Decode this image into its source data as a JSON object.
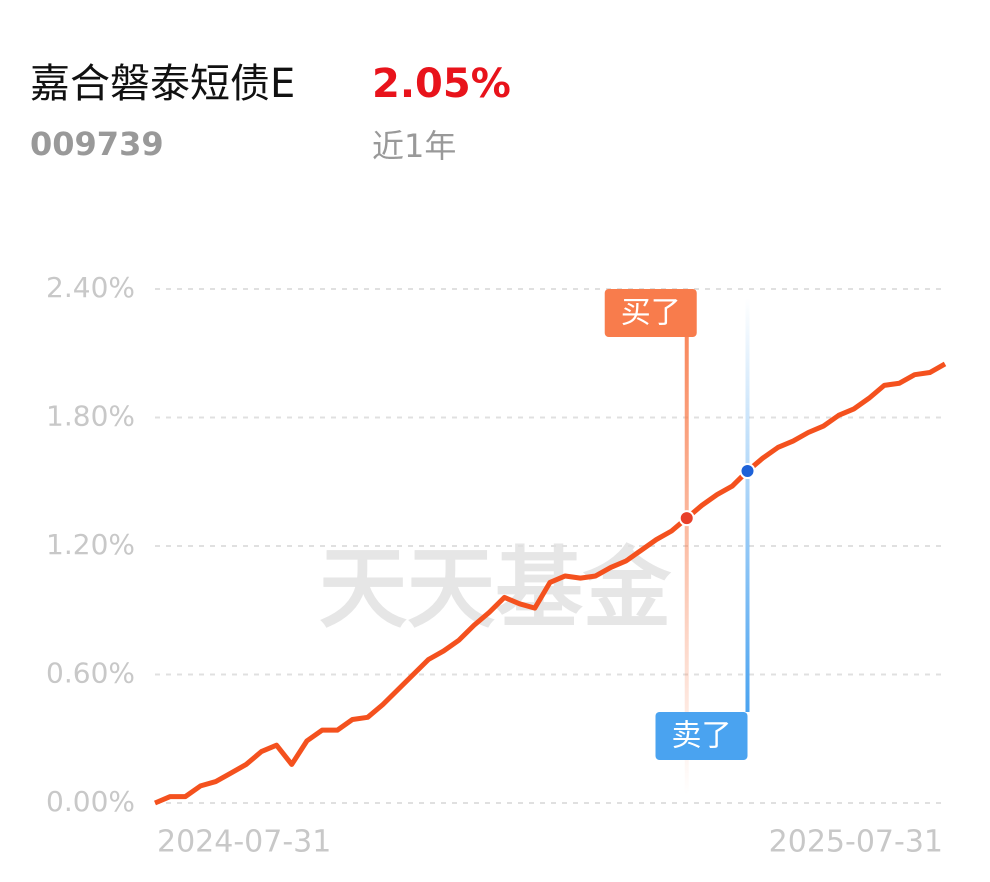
{
  "header": {
    "name": "嘉合磐泰短债E",
    "return_label": "2.05%",
    "code": "009739",
    "period": "近1年"
  },
  "chart_data": {
    "type": "line",
    "watermark": "天天基金",
    "color": "#f4511e",
    "categories": [
      "2024-07-31",
      null,
      null,
      null,
      null,
      null,
      null,
      null,
      null,
      null,
      null,
      null,
      null,
      null,
      null,
      null,
      null,
      null,
      null,
      null,
      null,
      null,
      null,
      null,
      null,
      null,
      null,
      null,
      null,
      null,
      null,
      null,
      null,
      null,
      null,
      null,
      null,
      null,
      null,
      null,
      null,
      null,
      null,
      null,
      null,
      null,
      null,
      null,
      null,
      null,
      null,
      null,
      "2025-07-31"
    ],
    "values": [
      0.0,
      0.03,
      0.03,
      0.08,
      0.1,
      0.14,
      0.18,
      0.24,
      0.27,
      0.18,
      0.29,
      0.34,
      0.34,
      0.39,
      0.4,
      0.46,
      0.53,
      0.6,
      0.67,
      0.71,
      0.76,
      0.83,
      0.89,
      0.96,
      0.93,
      0.91,
      1.03,
      1.06,
      1.05,
      1.06,
      1.1,
      1.13,
      1.18,
      1.23,
      1.27,
      1.33,
      1.39,
      1.44,
      1.48,
      1.55,
      1.61,
      1.66,
      1.69,
      1.73,
      1.76,
      1.81,
      1.84,
      1.89,
      1.95,
      1.96,
      2.0,
      2.01,
      2.05
    ],
    "markers": [
      {
        "name": "买了",
        "color": "#f87c4c",
        "dot": "#e8402a",
        "values": [
          null,
          null,
          null,
          null,
          null,
          null,
          null,
          null,
          null,
          null,
          null,
          null,
          null,
          null,
          null,
          null,
          null,
          null,
          null,
          null,
          null,
          null,
          null,
          null,
          null,
          null,
          null,
          null,
          null,
          null,
          null,
          null,
          null,
          null,
          null,
          1.33,
          null,
          null,
          null,
          null,
          null,
          null,
          null,
          null,
          null,
          null,
          null,
          null,
          null,
          null,
          null,
          null,
          null
        ]
      },
      {
        "name": "卖了",
        "color": "#4aa3f0",
        "dot": "#1e62d8",
        "values": [
          null,
          null,
          null,
          null,
          null,
          null,
          null,
          null,
          null,
          null,
          null,
          null,
          null,
          null,
          null,
          null,
          null,
          null,
          null,
          null,
          null,
          null,
          null,
          null,
          null,
          null,
          null,
          null,
          null,
          null,
          null,
          null,
          null,
          null,
          null,
          null,
          null,
          null,
          null,
          1.55,
          null,
          null,
          null,
          null,
          null,
          null,
          null,
          null,
          null,
          null,
          null,
          null,
          null
        ]
      }
    ],
    "ylim": [
      0,
      2.4
    ],
    "yticks": [
      {
        "value": 0,
        "label": "0.00%"
      },
      {
        "value": 0.6,
        "label": "0.60%"
      },
      {
        "value": 1.2,
        "label": "1.20%"
      },
      {
        "value": 1.8,
        "label": "1.80%"
      },
      {
        "value": 2.4,
        "label": "2.40%"
      }
    ],
    "grid": true
  }
}
